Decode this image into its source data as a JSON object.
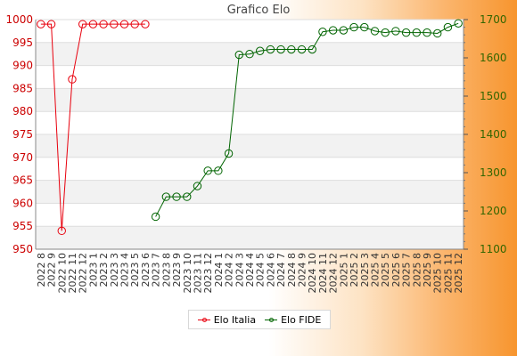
{
  "chart_data": {
    "type": "line",
    "title": "Grafico Elo",
    "xlabel": "",
    "ylabel": "",
    "categories": [
      "2022 8",
      "2022 9",
      "2022 10",
      "2022 11",
      "2022 12",
      "2023 1",
      "2023 2",
      "2023 3",
      "2023 4",
      "2023 5",
      "2023 6",
      "2023 7",
      "2023 8",
      "2023 9",
      "2023 10",
      "2023 11",
      "2023 12",
      "2024 1",
      "2024 2",
      "2024 3",
      "2024 4",
      "2024 5",
      "2024 6",
      "2024 7",
      "2024 8",
      "2024 9",
      "2024 10",
      "2024 11",
      "2024 12",
      "2025 1",
      "2025 2",
      "2025 3",
      "2025 4",
      "2025 5",
      "2025 6",
      "2025 7",
      "2025 8",
      "2025 9",
      "2025 10",
      "2025 11",
      "2025 12"
    ],
    "left_axis": {
      "ylim": [
        950,
        1000
      ],
      "ticks": [
        950,
        955,
        960,
        965,
        970,
        975,
        980,
        985,
        990,
        995,
        1000
      ],
      "color": "#cc0000"
    },
    "right_axis": {
      "ylim": [
        1100,
        1700
      ],
      "ticks": [
        1100,
        1200,
        1300,
        1400,
        1500,
        1600,
        1700
      ],
      "color": "#336600"
    },
    "grid": true,
    "legend_position": "bottom",
    "series": [
      {
        "name": "Elo Italia",
        "axis": "left",
        "color": "#e8000d",
        "values": [
          999,
          999,
          954,
          987,
          999,
          999,
          999,
          999,
          999,
          999,
          999,
          null,
          null,
          null,
          null,
          null,
          null,
          null,
          null,
          null,
          null,
          null,
          null,
          null,
          null,
          null,
          null,
          null,
          null,
          null,
          null,
          null,
          null,
          null,
          null,
          null,
          null,
          null,
          null,
          null,
          null
        ]
      },
      {
        "name": "Elo FIDE",
        "axis": "right",
        "color": "#006400",
        "values": [
          null,
          null,
          null,
          null,
          null,
          null,
          null,
          null,
          null,
          null,
          null,
          1185,
          1237,
          1237,
          1237,
          1265,
          1305,
          1305,
          1350,
          1608,
          1610,
          1618,
          1622,
          1622,
          1622,
          1622,
          1622,
          1668,
          1672,
          1672,
          1680,
          1680,
          1670,
          1666,
          1670,
          1666,
          1666,
          1666,
          1664,
          1680,
          1690
        ]
      }
    ]
  }
}
